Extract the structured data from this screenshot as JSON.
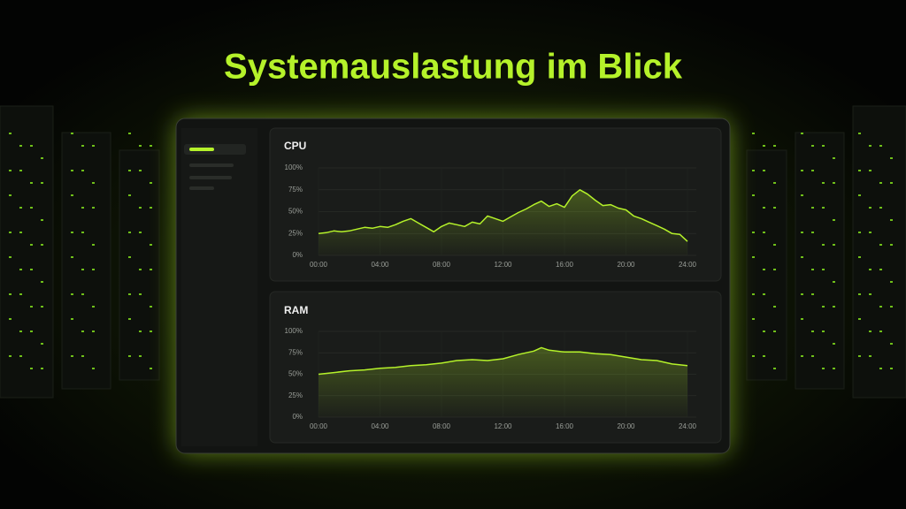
{
  "title": "Systemauslastung im Blick",
  "chart_data": [
    {
      "type": "line",
      "title": "CPU",
      "color": "#b5f22a",
      "grid": true,
      "x": [
        0,
        0.5,
        1,
        1.5,
        2,
        2.5,
        3,
        3.5,
        4,
        4.5,
        5,
        5.5,
        6,
        6.5,
        7,
        7.5,
        8,
        8.5,
        9,
        9.5,
        10,
        10.5,
        11,
        11.5,
        12,
        12.5,
        13,
        13.5,
        14,
        14.5,
        15,
        15.5,
        16,
        16.5,
        17,
        17.5,
        18,
        18.5,
        19,
        19.5,
        20,
        20.5,
        21,
        21.5,
        22,
        22.5,
        23,
        23.5,
        24
      ],
      "values": [
        25,
        26,
        28,
        27,
        28,
        30,
        32,
        31,
        33,
        32,
        35,
        39,
        42,
        37,
        32,
        27,
        33,
        37,
        35,
        33,
        38,
        36,
        45,
        42,
        39,
        44,
        49,
        53,
        58,
        62,
        56,
        59,
        55,
        68,
        75,
        70,
        63,
        57,
        58,
        54,
        52,
        45,
        42,
        38,
        34,
        30,
        25,
        24,
        16
      ],
      "xlim": [
        0,
        24
      ],
      "xticks": [
        {
          "value": 0,
          "label": "00:00"
        },
        {
          "value": 4,
          "label": "04:00"
        },
        {
          "value": 8,
          "label": "08:00"
        },
        {
          "value": 12,
          "label": "12:00"
        },
        {
          "value": 16,
          "label": "16:00"
        },
        {
          "value": 20,
          "label": "20:00"
        },
        {
          "value": 24,
          "label": "24:00"
        }
      ],
      "ylim": [
        0,
        100
      ],
      "yticks": [
        {
          "value": 0,
          "label": "0%"
        },
        {
          "value": 25,
          "label": "25%"
        },
        {
          "value": 50,
          "label": "50%"
        },
        {
          "value": 75,
          "label": "75%"
        },
        {
          "value": 100,
          "label": "100%"
        }
      ]
    },
    {
      "type": "line",
      "title": "RAM",
      "color": "#b5f22a",
      "grid": true,
      "x": [
        0,
        1,
        2,
        3,
        4,
        5,
        6,
        7,
        8,
        9,
        10,
        11,
        12,
        13,
        14,
        14.5,
        15,
        16,
        17,
        18,
        19,
        20,
        21,
        22,
        23,
        24
      ],
      "values": [
        50,
        52,
        54,
        55,
        57,
        58,
        60,
        61,
        63,
        66,
        67,
        66,
        68,
        73,
        77,
        81,
        78,
        76,
        76,
        74,
        73,
        70,
        67,
        66,
        62,
        60
      ],
      "xlim": [
        0,
        24
      ],
      "xticks": [
        {
          "value": 0,
          "label": "00:00"
        },
        {
          "value": 4,
          "label": "04:00"
        },
        {
          "value": 8,
          "label": "08:00"
        },
        {
          "value": 12,
          "label": "12:00"
        },
        {
          "value": 16,
          "label": "16:00"
        },
        {
          "value": 20,
          "label": "20:00"
        },
        {
          "value": 24,
          "label": "24:00"
        }
      ],
      "ylim": [
        0,
        100
      ],
      "yticks": [
        {
          "value": 0,
          "label": "0%"
        },
        {
          "value": 25,
          "label": "25%"
        },
        {
          "value": 50,
          "label": "50%"
        },
        {
          "value": 75,
          "label": "75%"
        },
        {
          "value": 100,
          "label": "100%"
        }
      ]
    }
  ]
}
